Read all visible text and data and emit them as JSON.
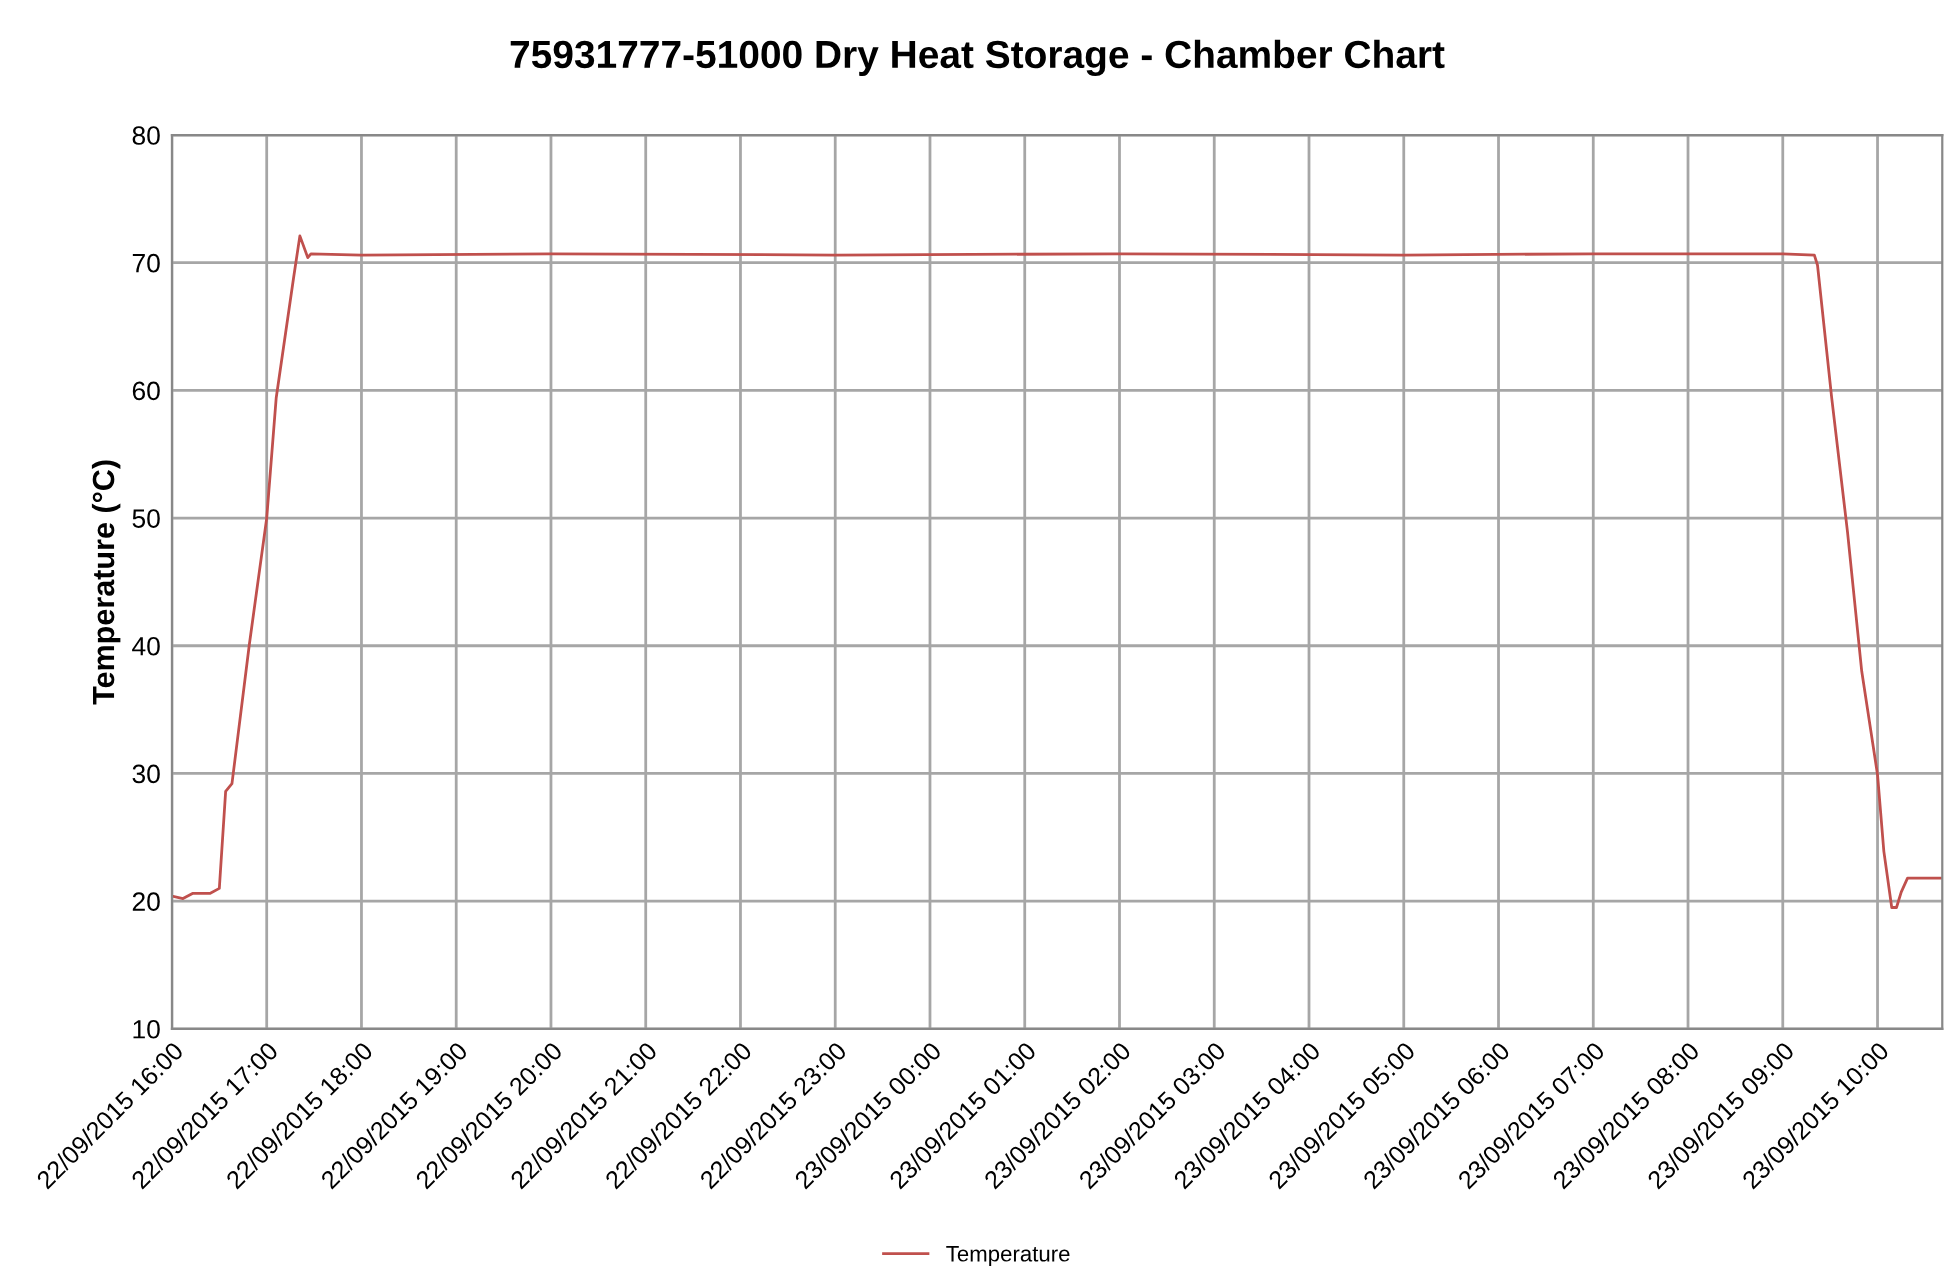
{
  "chart_data": {
    "type": "line",
    "title": "75931777-51000 Dry Heat Storage - Chamber Chart",
    "ylabel": "Temperature (°C)",
    "series": [
      {
        "name": "Temperature",
        "color": "#c0504d",
        "x": [
          "2015-09-22T16:00",
          "2015-09-22T16:07",
          "2015-09-22T16:13",
          "2015-09-22T16:24",
          "2015-09-22T16:30",
          "2015-09-22T16:34",
          "2015-09-22T16:38",
          "2015-09-22T16:49",
          "2015-09-22T17:00",
          "2015-09-22T17:06",
          "2015-09-22T17:17",
          "2015-09-22T17:21",
          "2015-09-22T17:26",
          "2015-09-22T17:28",
          "2015-09-22T18:00",
          "2015-09-22T20:00",
          "2015-09-22T23:00",
          "2015-09-23T02:00",
          "2015-09-23T05:00",
          "2015-09-23T07:00",
          "2015-09-23T09:00",
          "2015-09-23T09:20",
          "2015-09-23T09:22",
          "2015-09-23T09:31",
          "2015-09-23T09:41",
          "2015-09-23T09:50",
          "2015-09-23T10:00",
          "2015-09-23T10:04",
          "2015-09-23T10:09",
          "2015-09-23T10:12",
          "2015-09-23T10:15",
          "2015-09-23T10:19",
          "2015-09-23T10:41"
        ],
        "values": [
          20.4,
          20.2,
          20.6,
          20.6,
          21.0,
          28.6,
          29.2,
          40.1,
          50.0,
          59.4,
          68.8,
          72.1,
          70.4,
          70.7,
          70.6,
          70.7,
          70.6,
          70.7,
          70.6,
          70.7,
          70.7,
          70.6,
          69.8,
          59.4,
          48.9,
          38.0,
          29.9,
          23.9,
          19.5,
          19.5,
          20.7,
          21.8,
          21.8
        ]
      }
    ],
    "xlim": [
      "2015-09-22T16:00",
      "2015-09-23T10:41"
    ],
    "xticks": [
      {
        "value": "2015-09-22T16:00",
        "label": "22/09/2015 16:00"
      },
      {
        "value": "2015-09-22T17:00",
        "label": "22/09/2015 17:00"
      },
      {
        "value": "2015-09-22T18:00",
        "label": "22/09/2015 18:00"
      },
      {
        "value": "2015-09-22T19:00",
        "label": "22/09/2015 19:00"
      },
      {
        "value": "2015-09-22T20:00",
        "label": "22/09/2015 20:00"
      },
      {
        "value": "2015-09-22T21:00",
        "label": "22/09/2015 21:00"
      },
      {
        "value": "2015-09-22T22:00",
        "label": "22/09/2015 22:00"
      },
      {
        "value": "2015-09-22T23:00",
        "label": "22/09/2015 23:00"
      },
      {
        "value": "2015-09-23T00:00",
        "label": "23/09/2015 00:00"
      },
      {
        "value": "2015-09-23T01:00",
        "label": "23/09/2015 01:00"
      },
      {
        "value": "2015-09-23T02:00",
        "label": "23/09/2015 02:00"
      },
      {
        "value": "2015-09-23T03:00",
        "label": "23/09/2015 03:00"
      },
      {
        "value": "2015-09-23T04:00",
        "label": "23/09/2015 04:00"
      },
      {
        "value": "2015-09-23T05:00",
        "label": "23/09/2015 05:00"
      },
      {
        "value": "2015-09-23T06:00",
        "label": "23/09/2015 06:00"
      },
      {
        "value": "2015-09-23T07:00",
        "label": "23/09/2015 07:00"
      },
      {
        "value": "2015-09-23T08:00",
        "label": "23/09/2015 08:00"
      },
      {
        "value": "2015-09-23T09:00",
        "label": "23/09/2015 09:00"
      },
      {
        "value": "2015-09-23T10:00",
        "label": "23/09/2015 10:00"
      }
    ],
    "ylim": [
      10,
      80
    ],
    "yticks": [
      10,
      20,
      30,
      40,
      50,
      60,
      70,
      80
    ],
    "grid": true,
    "legend": "bottom",
    "marker": "none",
    "line_style": "solid"
  }
}
